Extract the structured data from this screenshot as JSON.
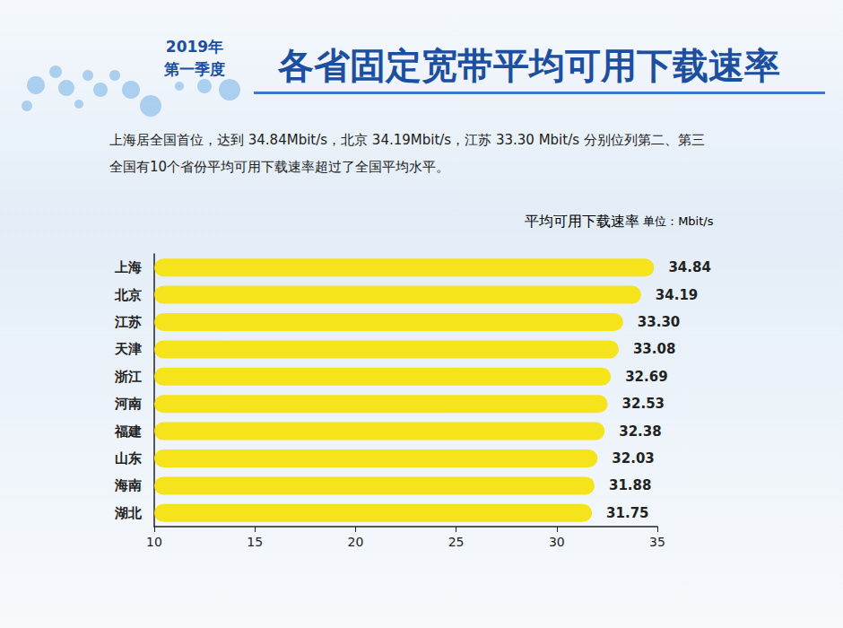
{
  "chart_data": {
    "type": "bar",
    "orientation": "horizontal",
    "title": "各省固定宽带平均可用下载速率",
    "subtitle": "2019年 第一季度",
    "annotations": [
      [
        {
          "text": "上海居全国首位，达到 "
        },
        {
          "text": "34.84Mbit/s",
          "color": "#e8322f"
        },
        {
          "text": "，北京 "
        },
        {
          "text": "34.19Mbit/s",
          "color": "#e8322f"
        },
        {
          "text": "，江苏 "
        },
        {
          "text": "33.30 Mbit/s",
          "color": "#e8322f"
        },
        {
          "text": " 分别位列第二、第三"
        }
      ],
      [
        {
          "text": "全国有10个省份平均可用下载速率超过了全国平均水平。"
        }
      ]
    ],
    "xlabel": "平均可用下载速率 单位：Mbit/s",
    "categories": [
      "上海",
      "北京",
      "江苏",
      "天津",
      "浙江",
      "河南",
      "福建",
      "山东",
      "海南",
      "湖北"
    ],
    "values": [
      34.84,
      34.19,
      33.3,
      33.08,
      32.69,
      32.53,
      32.38,
      32.03,
      31.88,
      31.75
    ],
    "value_labels": [
      "34.84",
      "34.19",
      "33.30",
      "33.08",
      "32.69",
      "32.53",
      "32.38",
      "32.03",
      "31.88",
      "31.75"
    ],
    "color": "#f5e31b",
    "xlim": [
      10,
      35
    ],
    "xticks": [
      10,
      15,
      20,
      25,
      30,
      35
    ],
    "grid": false,
    "data_labels": true
  }
}
